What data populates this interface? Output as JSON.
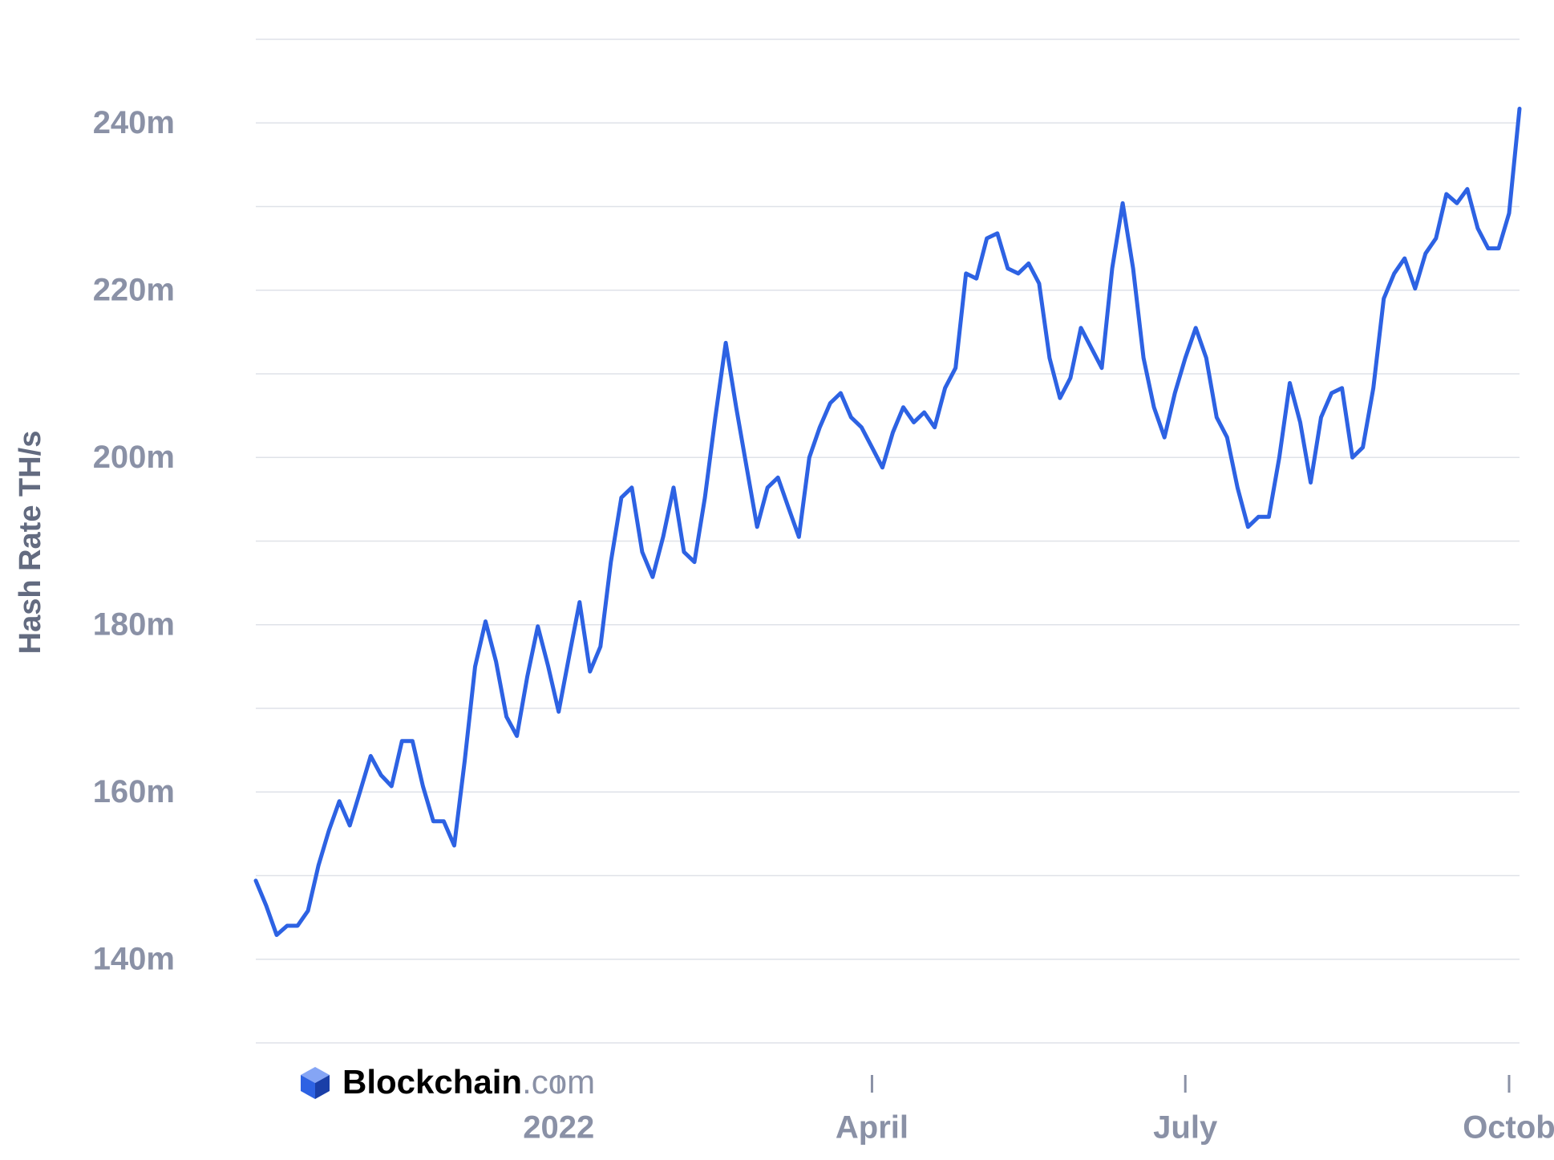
{
  "chart_data": {
    "type": "line",
    "y_label": "Hash Rate TH/s",
    "logo": {
      "name": "Blockchain",
      "suffix": ".com"
    },
    "categories": [
      null,
      null,
      null,
      null,
      null,
      null,
      null,
      null,
      null,
      null,
      null,
      null,
      null,
      null,
      null,
      null,
      null,
      null,
      null,
      null,
      null,
      null,
      null,
      null,
      null,
      null,
      null,
      null,
      null,
      "2022",
      null,
      null,
      null,
      null,
      null,
      null,
      null,
      null,
      null,
      null,
      null,
      null,
      null,
      null,
      null,
      null,
      null,
      null,
      null,
      null,
      null,
      null,
      null,
      null,
      null,
      null,
      null,
      null,
      null,
      "April",
      null,
      null,
      null,
      null,
      null,
      null,
      null,
      null,
      null,
      null,
      null,
      null,
      null,
      null,
      null,
      null,
      null,
      null,
      null,
      null,
      null,
      null,
      null,
      null,
      null,
      null,
      null,
      null,
      null,
      "July",
      null,
      null,
      null,
      null,
      null,
      null,
      null,
      null,
      null,
      null,
      null,
      null,
      null,
      null,
      null,
      null,
      null,
      null,
      null,
      null,
      null,
      null,
      null,
      null,
      null,
      null,
      null,
      null,
      null,
      null,
      "Octob",
      null
    ],
    "series": [
      {
        "color": "#2d62e3",
        "values": [
          149.4,
          146.4,
          142.9,
          144,
          144,
          145.8,
          151.2,
          155.4,
          158.9,
          156,
          160.1,
          164.3,
          162,
          160.7,
          166.1,
          166.1,
          160.7,
          156.5,
          156.5,
          153.6,
          163.7,
          175,
          180.4,
          175.6,
          169,
          166.7,
          173.8,
          179.8,
          175,
          169.6,
          176.2,
          182.7,
          174.4,
          177.4,
          187.5,
          195.2,
          196.4,
          188.7,
          185.7,
          190.5,
          196.4,
          188.7,
          187.5,
          195.2,
          204.8,
          213.7,
          206,
          198.8,
          191.7,
          196.4,
          197.6,
          194,
          190.5,
          200,
          203.6,
          206.5,
          207.7,
          204.8,
          203.6,
          201.2,
          198.8,
          203,
          206,
          204.2,
          205.4,
          203.6,
          208.3,
          210.7,
          222,
          221.4,
          226.2,
          226.8,
          222.6,
          222,
          223.2,
          220.8,
          211.9,
          207.1,
          209.5,
          215.5,
          213.1,
          210.7,
          222.6,
          230.4,
          222.6,
          211.9,
          206,
          202.4,
          207.7,
          211.9,
          215.5,
          211.9,
          204.8,
          202.4,
          196.4,
          191.7,
          192.9,
          192.9,
          200,
          208.9,
          204.2,
          197,
          204.8,
          207.7,
          208.3,
          200,
          201.2,
          208.3,
          219,
          222,
          223.8,
          220.2,
          224.4,
          226.2,
          231.5,
          230.4,
          232.1,
          227.4,
          225,
          225,
          229.2,
          241.7
        ]
      }
    ],
    "ylim": [
      130,
      250
    ],
    "yticks": [
      {
        "value": 130,
        "label": null
      },
      {
        "value": 140,
        "label": "140m"
      },
      {
        "value": 150,
        "label": null
      },
      {
        "value": 160,
        "label": "160m"
      },
      {
        "value": 170,
        "label": null
      },
      {
        "value": 180,
        "label": "180m"
      },
      {
        "value": 190,
        "label": null
      },
      {
        "value": 200,
        "label": "200m"
      },
      {
        "value": 210,
        "label": null
      },
      {
        "value": 220,
        "label": "220m"
      },
      {
        "value": 230,
        "label": null
      },
      {
        "value": 240,
        "label": "240m"
      },
      {
        "value": 250,
        "label": null
      }
    ],
    "grid": true
  }
}
